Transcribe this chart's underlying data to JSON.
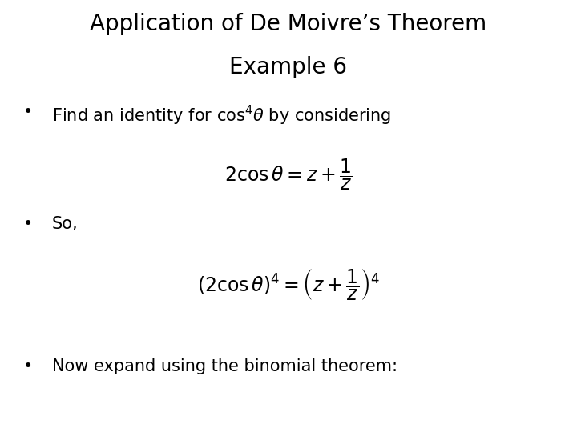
{
  "title_line1": "Application of De Moivre’s Theorem",
  "title_line2": "Example 6",
  "bg_color": "#ffffff",
  "text_color": "#000000",
  "title_fontsize": 20,
  "body_fontsize": 15,
  "formula_fontsize": 16
}
